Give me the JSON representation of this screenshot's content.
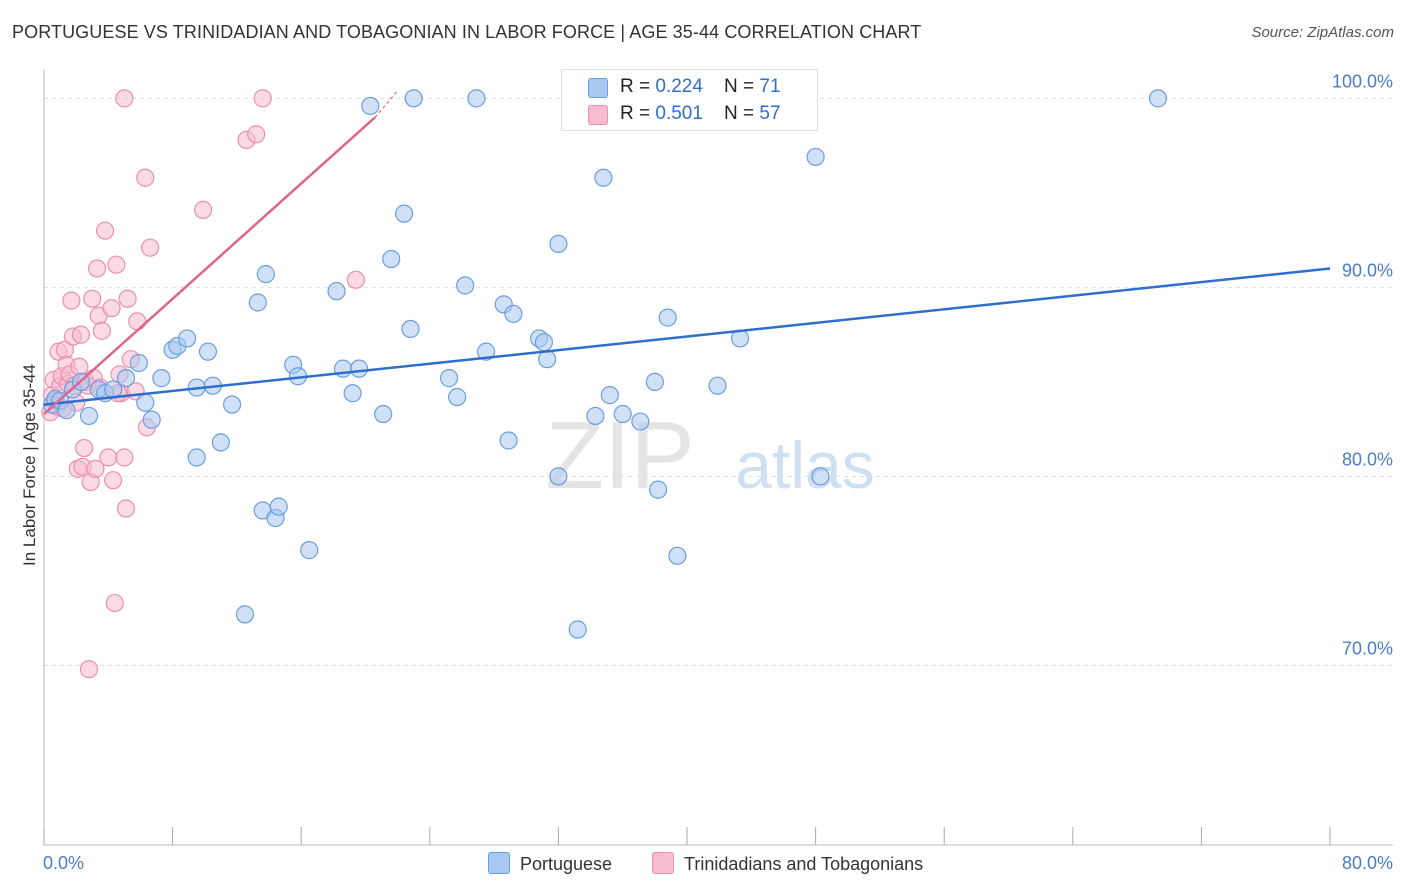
{
  "title": "PORTUGUESE VS TRINIDADIAN AND TOBAGONIAN IN LABOR FORCE | AGE 35-44 CORRELATION CHART",
  "source": "Source: ZipAtlas.com",
  "watermark": {
    "zip": "ZIP",
    "atlas": "atlas"
  },
  "legend": {
    "rows": [
      {
        "r_label": "R = ",
        "r_value": "0.224",
        "n_label": "N = ",
        "n_value": "71"
      },
      {
        "r_label": "R = ",
        "r_value": "0.501",
        "n_label": "N = ",
        "n_value": "57"
      }
    ]
  },
  "colors": {
    "blue_fill": "#a9c8f0",
    "blue_stroke": "#6a9ee0",
    "blue_line": "#2f6fcc",
    "pink_fill": "#f8bcd0",
    "pink_stroke": "#ec8fae",
    "pink_line": "#e0628f",
    "tick_label": "#4a7cc8",
    "grid": "#dddddd"
  },
  "chart_data": {
    "type": "scatter",
    "title": "PORTUGUESE VS TRINIDADIAN AND TOBAGONIAN IN LABOR FORCE | AGE 35-44 CORRELATION CHART",
    "xlabel": "",
    "ylabel": "In Labor Force | Age 35-44",
    "xlim": [
      0,
      80
    ],
    "ylim": [
      60.5,
      101.5
    ],
    "x_tick_labels": [
      "0.0%",
      "80.0%"
    ],
    "y_ticks": [
      70,
      80,
      90,
      100
    ],
    "y_tick_labels": [
      "70.0%",
      "80.0%",
      "90.0%",
      "100.0%"
    ],
    "legend_position": "top-center",
    "series": [
      {
        "name": "Portuguese",
        "r": 0.224,
        "n": 71,
        "trend": {
          "x": [
            0,
            80
          ],
          "y": [
            83.8,
            91.0
          ]
        },
        "points": [
          [
            0.5,
            83.8
          ],
          [
            0.7,
            84.1
          ],
          [
            1.0,
            84.0
          ],
          [
            1.4,
            83.5
          ],
          [
            1.8,
            84.6
          ],
          [
            2.3,
            85.0
          ],
          [
            2.8,
            83.2
          ],
          [
            3.4,
            84.6
          ],
          [
            3.8,
            84.4
          ],
          [
            4.3,
            84.6
          ],
          [
            5.1,
            85.2
          ],
          [
            5.9,
            86.0
          ],
          [
            6.3,
            83.9
          ],
          [
            6.7,
            83.0
          ],
          [
            7.3,
            85.2
          ],
          [
            8.0,
            86.7
          ],
          [
            8.3,
            86.9
          ],
          [
            8.9,
            87.3
          ],
          [
            9.5,
            84.7
          ],
          [
            9.5,
            81.0
          ],
          [
            10.2,
            86.6
          ],
          [
            10.5,
            84.8
          ],
          [
            11.0,
            81.8
          ],
          [
            11.7,
            83.8
          ],
          [
            12.5,
            72.7
          ],
          [
            13.3,
            89.2
          ],
          [
            13.6,
            78.2
          ],
          [
            13.8,
            90.7
          ],
          [
            14.4,
            77.8
          ],
          [
            14.6,
            78.4
          ],
          [
            15.5,
            85.9
          ],
          [
            15.8,
            85.3
          ],
          [
            16.5,
            76.1
          ],
          [
            18.2,
            89.8
          ],
          [
            18.6,
            85.7
          ],
          [
            19.2,
            84.4
          ],
          [
            19.6,
            85.7
          ],
          [
            20.3,
            99.6
          ],
          [
            21.1,
            83.3
          ],
          [
            21.6,
            91.5
          ],
          [
            22.4,
            93.9
          ],
          [
            22.8,
            87.8
          ],
          [
            23.0,
            100.0
          ],
          [
            25.2,
            85.2
          ],
          [
            25.7,
            84.2
          ],
          [
            26.2,
            90.1
          ],
          [
            26.9,
            100.0
          ],
          [
            27.5,
            86.6
          ],
          [
            28.6,
            89.1
          ],
          [
            28.9,
            81.9
          ],
          [
            29.2,
            88.6
          ],
          [
            30.8,
            87.3
          ],
          [
            31.1,
            87.1
          ],
          [
            31.3,
            86.2
          ],
          [
            32.0,
            92.3
          ],
          [
            32.0,
            80.0
          ],
          [
            33.2,
            71.9
          ],
          [
            34.3,
            83.2
          ],
          [
            34.8,
            95.8
          ],
          [
            35.2,
            84.3
          ],
          [
            36.0,
            83.3
          ],
          [
            37.1,
            82.9
          ],
          [
            38.0,
            85.0
          ],
          [
            38.2,
            79.3
          ],
          [
            38.8,
            88.4
          ],
          [
            39.4,
            75.8
          ],
          [
            41.9,
            84.8
          ],
          [
            43.3,
            87.3
          ],
          [
            48.0,
            96.9
          ],
          [
            48.3,
            80.0
          ],
          [
            69.3,
            100.0
          ]
        ]
      },
      {
        "name": "Trinidadians and Tobagonians",
        "r": 0.501,
        "n": 57,
        "trend": {
          "x": [
            0,
            20.6
          ],
          "y": [
            83.3,
            99.0
          ]
        },
        "trend_dashed_end": [
          22.0,
          100.4
        ],
        "points": [
          [
            0.4,
            83.4
          ],
          [
            0.5,
            84.3
          ],
          [
            0.6,
            85.1
          ],
          [
            0.7,
            84.0
          ],
          [
            0.8,
            83.7
          ],
          [
            0.9,
            86.6
          ],
          [
            1.0,
            84.8
          ],
          [
            1.1,
            85.3
          ],
          [
            1.2,
            83.6
          ],
          [
            1.3,
            86.7
          ],
          [
            1.4,
            85.9
          ],
          [
            1.5,
            84.9
          ],
          [
            1.6,
            85.4
          ],
          [
            1.7,
            89.3
          ],
          [
            1.8,
            87.4
          ],
          [
            1.9,
            84.8
          ],
          [
            2.0,
            83.9
          ],
          [
            2.1,
            80.4
          ],
          [
            2.2,
            85.8
          ],
          [
            2.3,
            87.5
          ],
          [
            2.4,
            80.5
          ],
          [
            2.5,
            81.5
          ],
          [
            2.6,
            85.0
          ],
          [
            2.7,
            84.8
          ],
          [
            2.8,
            69.8
          ],
          [
            2.9,
            79.7
          ],
          [
            3.0,
            89.4
          ],
          [
            3.1,
            85.2
          ],
          [
            3.2,
            80.4
          ],
          [
            3.3,
            91.0
          ],
          [
            3.4,
            88.5
          ],
          [
            3.5,
            84.7
          ],
          [
            3.6,
            87.7
          ],
          [
            3.8,
            93.0
          ],
          [
            4.0,
            81.0
          ],
          [
            4.2,
            88.9
          ],
          [
            4.3,
            79.8
          ],
          [
            4.4,
            73.3
          ],
          [
            4.5,
            91.2
          ],
          [
            4.7,
            85.4
          ],
          [
            4.8,
            84.4
          ],
          [
            5.0,
            81.0
          ],
          [
            5.1,
            78.3
          ],
          [
            5.2,
            89.4
          ],
          [
            5.4,
            86.2
          ],
          [
            5.7,
            84.5
          ],
          [
            5.8,
            88.2
          ],
          [
            6.3,
            95.8
          ],
          [
            6.4,
            82.6
          ],
          [
            6.6,
            92.1
          ],
          [
            9.9,
            94.1
          ],
          [
            12.6,
            97.8
          ],
          [
            13.2,
            98.1
          ],
          [
            13.6,
            100.0
          ],
          [
            5.0,
            100.0
          ],
          [
            19.4,
            90.4
          ],
          [
            4.6,
            84.4
          ]
        ]
      }
    ]
  },
  "bottom_legend": [
    "Portuguese",
    "Trinidadians and Tobagonians"
  ]
}
